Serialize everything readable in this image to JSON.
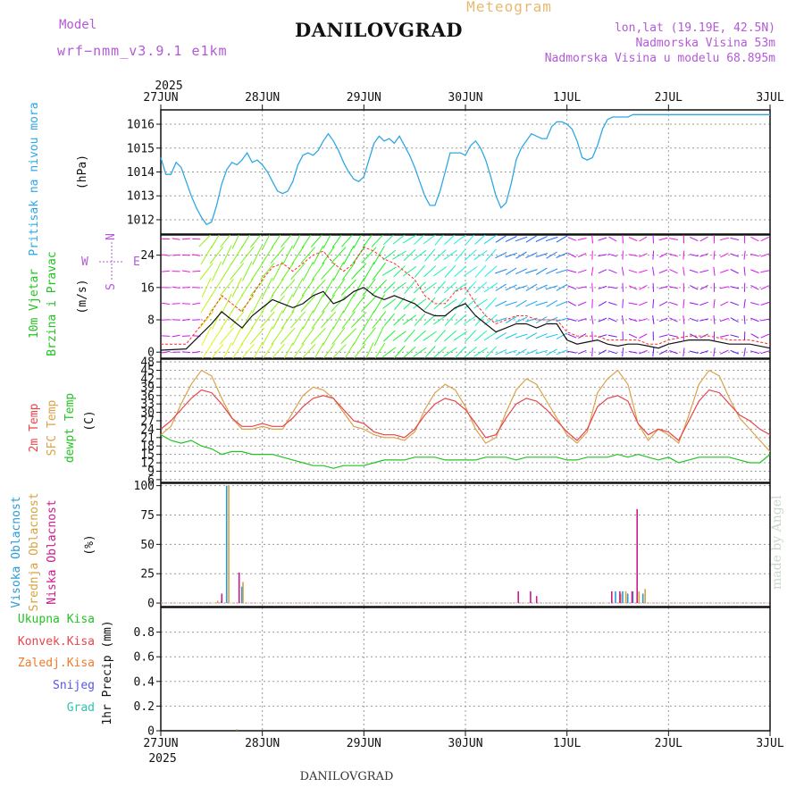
{
  "header": {
    "title": "DANILOVGRAD",
    "meteogram": "Meteogram",
    "model_label": "Model",
    "model_value": "wrf−nmm_v3.9.1 e1km",
    "lonlat": "lon,lat (19.19E, 42.5N)",
    "elevation": "Nadmorska Visina 53m",
    "model_elevation": "Nadmorska Visina u modelu 68.895m",
    "year_top": "2025",
    "year_bottom": "2025"
  },
  "footer": {
    "station": "DANILOVGRAD",
    "credit": "made by Angel"
  },
  "dates": [
    "27JUN",
    "28JUN",
    "29JUN",
    "30JUN",
    "1JUL",
    "2JUL",
    "3JUL"
  ],
  "wind_compass": {
    "n": "N",
    "w": "W",
    "e": "E",
    "s": "S"
  },
  "colors": {
    "pressure": "#2fa7e6",
    "t2m": "#e8444a",
    "sfc": "#dba24a",
    "dew": "#22c322",
    "high_cloud": "#2a9bd6",
    "mid_cloud": "#d7a23f",
    "low_cloud": "#cc1a8f",
    "wind_speed": "#111111",
    "gust": "#ff2a2a"
  },
  "chart_data": [
    {
      "panel": "pressure",
      "type": "line",
      "ylabel": [
        "Pritisak na nivou mora",
        "(hPa)"
      ],
      "ylim": [
        1011.4,
        1016.6
      ],
      "yticks": [
        1012,
        1013,
        1014,
        1015,
        1016
      ],
      "x_days": [
        0,
        0.05,
        0.1,
        0.15,
        0.2,
        0.25,
        0.3,
        0.35,
        0.4,
        0.45,
        0.5,
        0.55,
        0.6,
        0.65,
        0.7,
        0.75,
        0.8,
        0.85,
        0.9,
        0.95,
        1.0,
        1.05,
        1.1,
        1.15,
        1.2,
        1.25,
        1.3,
        1.35,
        1.4,
        1.45,
        1.5,
        1.55,
        1.6,
        1.65,
        1.7,
        1.75,
        1.8,
        1.85,
        1.9,
        1.95,
        2.0,
        2.05,
        2.1,
        2.15,
        2.2,
        2.25,
        2.3,
        2.35,
        2.4,
        2.45,
        2.5,
        2.55,
        2.6,
        2.65,
        2.7,
        2.75,
        2.8,
        2.85,
        2.9,
        2.95,
        3.0,
        3.05,
        3.1,
        3.15,
        3.2,
        3.25,
        3.3,
        3.35,
        3.4,
        3.45,
        3.5,
        3.55,
        3.6,
        3.65,
        3.7,
        3.75,
        3.8,
        3.85,
        3.9,
        3.95,
        4.0,
        4.05,
        4.1,
        4.15,
        4.2,
        4.25,
        4.3,
        4.35,
        4.4,
        4.45,
        4.5,
        4.55,
        4.6,
        4.65,
        4.7,
        4.75,
        4.8,
        4.85,
        4.9,
        4.95,
        5.0,
        5.05,
        5.1,
        5.15,
        5.2,
        5.25,
        5.3,
        5.35,
        5.4,
        5.45,
        5.5,
        5.55,
        5.6,
        5.65,
        5.7,
        5.75,
        5.8,
        5.85,
        5.9,
        5.95,
        6.0
      ],
      "series": [
        {
          "values": [
            1014.6,
            1013.9,
            1013.9,
            1014.4,
            1014.2,
            1013.6,
            1013.0,
            1012.5,
            1012.1,
            1011.8,
            1011.9,
            1012.6,
            1013.5,
            1014.1,
            1014.4,
            1014.3,
            1014.5,
            1014.8,
            1014.4,
            1014.5,
            1014.3,
            1014.0,
            1013.6,
            1013.2,
            1013.1,
            1013.2,
            1013.6,
            1014.3,
            1014.7,
            1014.8,
            1014.7,
            1014.9,
            1015.3,
            1015.6,
            1015.3,
            1014.9,
            1014.4,
            1014.0,
            1013.7,
            1013.6,
            1013.8,
            1014.5,
            1015.2,
            1015.5,
            1015.3,
            1015.4,
            1015.2,
            1015.5,
            1015.1,
            1014.7,
            1014.2,
            1013.6,
            1013.0,
            1012.6,
            1012.6,
            1013.2,
            1014.0,
            1014.8,
            1014.8,
            1014.8,
            1014.7,
            1015.1,
            1015.3,
            1015.0,
            1014.5,
            1013.8,
            1013.0,
            1012.5,
            1012.7,
            1013.5,
            1014.5,
            1015.0,
            1015.3,
            1015.6,
            1015.5,
            1015.4,
            1015.4,
            1015.9,
            1016.1,
            1016.1,
            1016.0,
            1015.8,
            1015.3,
            1014.6,
            1014.5,
            1014.6,
            1015.1,
            1015.8,
            1016.2,
            1016.3,
            1016.3,
            1016.3,
            1016.3,
            1016.4,
            1016.4,
            1016.4,
            1016.4,
            1016.4,
            1016.4,
            1016.4,
            1016.4,
            1016.4,
            1016.4,
            1016.4,
            1016.4,
            1016.4,
            1016.4,
            1016.4,
            1016.4,
            1016.4,
            1016.4,
            1016.4,
            1016.4,
            1016.4,
            1016.4,
            1016.4,
            1016.4,
            1016.4,
            1016.4,
            1016.4,
            1016.4
          ]
        }
      ]
    },
    {
      "panel": "wind",
      "type": "line",
      "ylabel": [
        "10m Vjetar",
        "Brzina i Pravac",
        "(m/s)"
      ],
      "ylim": [
        -1.5,
        29
      ],
      "yticks": [
        0,
        8,
        16,
        24
      ],
      "x_days": [
        0,
        0.25,
        0.5,
        0.6,
        0.7,
        0.8,
        0.9,
        1.0,
        1.1,
        1.2,
        1.3,
        1.4,
        1.5,
        1.6,
        1.7,
        1.8,
        1.9,
        2.0,
        2.1,
        2.2,
        2.3,
        2.4,
        2.5,
        2.6,
        2.7,
        2.8,
        2.9,
        3.0,
        3.1,
        3.2,
        3.3,
        3.4,
        3.5,
        3.6,
        3.7,
        3.8,
        3.9,
        4.0,
        4.1,
        4.2,
        4.3,
        4.4,
        4.5,
        4.6,
        4.7,
        4.8,
        4.9,
        5.0,
        5.2,
        5.4,
        5.6,
        5.8,
        6.0
      ],
      "series": [
        {
          "name": "speed",
          "values": [
            0.5,
            0.8,
            7,
            10,
            8,
            6,
            9,
            11,
            13,
            12,
            11,
            12,
            14,
            15,
            12,
            13,
            15,
            16,
            14,
            13,
            14,
            13,
            12,
            10,
            9,
            9,
            11,
            12,
            9,
            7,
            5,
            6,
            7,
            7,
            6,
            7,
            7,
            3,
            2,
            2.5,
            3,
            2,
            1.5,
            2,
            2,
            1.5,
            1,
            2,
            3,
            3,
            2,
            2,
            1
          ]
        },
        {
          "name": "gust",
          "values": [
            2,
            2,
            10,
            14,
            12,
            10,
            14,
            18,
            21,
            22,
            20,
            22,
            24,
            25,
            22,
            20,
            22,
            26,
            25,
            23,
            22,
            20,
            18,
            14,
            12,
            12,
            15,
            16,
            12,
            9,
            7,
            8,
            9,
            9,
            8,
            8,
            8,
            5,
            4,
            4,
            4,
            3,
            3,
            3,
            3,
            2,
            2,
            3,
            4,
            4,
            3,
            3,
            2
          ]
        }
      ],
      "direction_rows_ms": [
        0,
        4,
        8,
        12,
        16,
        20,
        24,
        28
      ],
      "direction_columns": 60
    },
    {
      "panel": "temperature",
      "type": "line",
      "ylabel": [
        "2m Temp",
        "SFC Temp",
        "dewpt Temp",
        "(C)"
      ],
      "ylim": [
        5,
        49
      ],
      "yticks": [
        6,
        9,
        12,
        15,
        18,
        21,
        24,
        27,
        30,
        33,
        36,
        39,
        42,
        45,
        48
      ],
      "x_days": [
        0,
        0.1,
        0.2,
        0.3,
        0.4,
        0.5,
        0.6,
        0.7,
        0.8,
        0.9,
        1.0,
        1.1,
        1.2,
        1.3,
        1.4,
        1.5,
        1.6,
        1.7,
        1.8,
        1.9,
        2.0,
        2.1,
        2.2,
        2.3,
        2.4,
        2.5,
        2.6,
        2.7,
        2.8,
        2.9,
        3.0,
        3.1,
        3.2,
        3.3,
        3.4,
        3.5,
        3.6,
        3.7,
        3.8,
        3.9,
        4.0,
        4.1,
        4.2,
        4.3,
        4.4,
        4.5,
        4.6,
        4.7,
        4.8,
        4.9,
        5.0,
        5.1,
        5.2,
        5.3,
        5.4,
        5.5,
        5.6,
        5.7,
        5.8,
        5.9,
        6.0
      ],
      "series": [
        {
          "name": "2m Temp",
          "values": [
            24,
            27,
            31,
            35,
            38,
            37,
            33,
            28,
            25,
            25,
            26,
            25,
            25,
            28,
            32,
            35,
            36,
            35,
            31,
            27,
            26,
            23,
            22,
            22,
            21,
            24,
            29,
            33,
            35,
            34,
            31,
            26,
            21,
            22,
            28,
            33,
            35,
            34,
            31,
            27,
            23,
            20,
            24,
            32,
            35,
            36,
            34,
            26,
            22,
            24,
            23,
            20,
            27,
            34,
            38,
            37,
            33,
            29,
            27,
            24,
            22
          ]
        },
        {
          "name": "SFC Temp",
          "values": [
            22,
            25,
            33,
            40,
            45,
            43,
            35,
            28,
            24,
            24,
            25,
            24,
            24,
            30,
            36,
            39,
            38,
            35,
            30,
            25,
            24,
            22,
            21,
            21,
            20,
            23,
            31,
            37,
            40,
            38,
            32,
            24,
            19,
            21,
            30,
            38,
            42,
            40,
            34,
            28,
            22,
            19,
            23,
            37,
            42,
            45,
            40,
            26,
            20,
            24,
            22,
            19,
            29,
            40,
            45,
            43,
            35,
            28,
            24,
            20,
            16
          ]
        },
        {
          "name": "dewpt Temp",
          "values": [
            22,
            20,
            19,
            20,
            18,
            17,
            15,
            16,
            16,
            15,
            15,
            15,
            14,
            13,
            12,
            11,
            11,
            10,
            11,
            11,
            11,
            12,
            13,
            13,
            13,
            14,
            14,
            14,
            13,
            13,
            13,
            13,
            14,
            14,
            14,
            13,
            14,
            14,
            14,
            14,
            13,
            13,
            14,
            14,
            14,
            15,
            14,
            15,
            14,
            13,
            14,
            12,
            13,
            14,
            14,
            14,
            14,
            13,
            12,
            12,
            15
          ]
        }
      ]
    },
    {
      "panel": "cloud",
      "type": "bar",
      "ylabel": [
        "Visoka Oblacnost",
        "Srednja Oblacnost",
        "Niska Oblacnost",
        "(%)"
      ],
      "ylim": [
        -3,
        102
      ],
      "yticks": [
        0,
        25,
        50,
        75,
        100
      ],
      "series": [
        {
          "name": "Visoka Oblacnost",
          "x_days": [
            0.6,
            0.65,
            0.8,
            4.48,
            4.55,
            4.6,
            4.65,
            4.75
          ],
          "values": [
            2,
            100,
            14,
            10,
            10,
            8,
            10,
            8
          ]
        },
        {
          "name": "Srednja Oblacnost",
          "x_days": [
            0.55,
            0.66,
            0.8,
            4.52,
            4.57,
            4.7,
            4.76
          ],
          "values": [
            2,
            100,
            18,
            8,
            10,
            10,
            12
          ]
        },
        {
          "name": "Niska Oblacnost",
          "x_days": [
            0.58,
            0.75,
            3.5,
            3.62,
            3.68,
            4.42,
            4.5,
            4.62,
            4.67
          ],
          "values": [
            8,
            26,
            10,
            10,
            6,
            10,
            10,
            10,
            80
          ]
        }
      ]
    },
    {
      "panel": "precip",
      "type": "bar",
      "ylabel": [
        "1hr Precip (mm)"
      ],
      "legend": [
        "Ukupna Kisa",
        "Konvek.Kisa",
        "Zaledj.Kisa",
        "Snijeg",
        "Grad"
      ],
      "ylim": [
        0,
        1.0
      ],
      "yticks": [
        "0",
        "0.2",
        "0.4",
        "0.6",
        "0.8"
      ],
      "series": [
        {
          "name": "Ukupna Kisa",
          "x_days": [
            0.75
          ],
          "values": [
            0.01
          ]
        }
      ]
    }
  ]
}
